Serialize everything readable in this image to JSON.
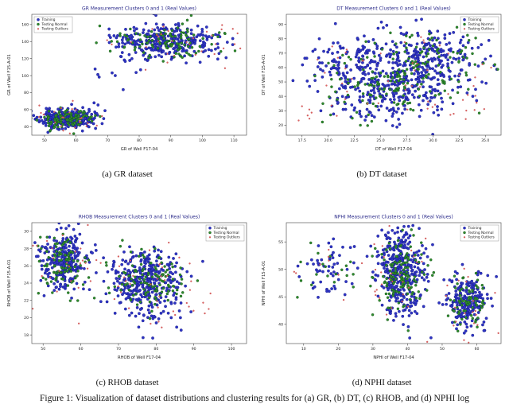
{
  "figure_caption": "Figure 1: Visualization of dataset distributions and clustering results for (a) GR, (b) DT, (c) RHOB, and (d) NPHI log",
  "legend_labels": [
    "Training",
    "Testing Normal",
    "Testing Outliers"
  ],
  "colors": {
    "training": "#2e34c4",
    "training_edge": "#12167c",
    "testing_normal": "#2e8b2e",
    "testing_normal_edge": "#114711",
    "testing_outliers": "#e06363",
    "testing_outliers_edge": "#c04545",
    "axis": "#444444",
    "title": "#2b2b8a",
    "text": "#222222"
  },
  "chart_data": [
    {
      "id": "gr",
      "type": "scatter",
      "title": "GR Measurement Clusters 0 and 1 (Real Values)",
      "xlabel": "GR of Well F17-04",
      "ylabel": "GR of Well F15-A-01",
      "caption": "(a) GR dataset",
      "xlim": [
        46,
        114
      ],
      "ylim": [
        30,
        172
      ],
      "xticks": [
        50,
        60,
        70,
        80,
        90,
        100,
        110
      ],
      "xtick_labels": [
        "50",
        "60",
        "70",
        "80",
        "90",
        "100",
        "110"
      ],
      "yticks": [
        40,
        60,
        80,
        100,
        120,
        140,
        160
      ],
      "ytick_labels": [
        "40",
        "60",
        "80",
        "100",
        "120",
        "140",
        "160"
      ],
      "legend_pos": "top-left",
      "seed": 11,
      "series": [
        {
          "name": "Training",
          "color": "#2e34c4",
          "edge": "#12167c",
          "r": 1.7,
          "clusters": [
            [
              57,
              49,
              4.2,
              5.5,
              300
            ],
            [
              88,
              141,
              8.5,
              10,
              320
            ],
            [
              74,
              100,
              5,
              12,
              8
            ]
          ]
        },
        {
          "name": "Testing Normal",
          "color": "#2e8b2e",
          "edge": "#114711",
          "r": 1.55,
          "clusters": [
            [
              57,
              49,
              4.2,
              5.5,
              100
            ],
            [
              88,
              141,
              8.5,
              10,
              110
            ],
            [
              105,
              149,
              2,
              2,
              3
            ]
          ]
        },
        {
          "name": "Testing Outliers",
          "color": "#e06363",
          "edge": "#c04545",
          "r": 0.95,
          "clusters": [
            [
              57,
              49,
              6.5,
              9,
              26
            ],
            [
              88,
              141,
              12,
              15,
              30
            ],
            [
              107,
              153,
              2.5,
              5,
              5
            ]
          ]
        }
      ]
    },
    {
      "id": "dt",
      "type": "scatter",
      "title": "DT Measurement Clusters 0 and 1 (Real Values)",
      "xlabel": "DT of Well F17-04",
      "ylabel": "DT of Well F15-A-01",
      "caption": "(b) DT dataset",
      "xlim": [
        16,
        36.5
      ],
      "ylim": [
        13,
        97
      ],
      "xticks": [
        17.5,
        20.0,
        22.5,
        25.0,
        27.5,
        30.0,
        32.5,
        35.0
      ],
      "xtick_labels": [
        "17.5",
        "20.0",
        "22.5",
        "25.0",
        "27.5",
        "30.0",
        "32.5",
        "35.0"
      ],
      "yticks": [
        20,
        30,
        40,
        50,
        60,
        70,
        80,
        90
      ],
      "ytick_labels": [
        "20",
        "30",
        "40",
        "50",
        "60",
        "70",
        "80",
        "90"
      ],
      "legend_pos": "top-right",
      "seed": 22,
      "series": [
        {
          "name": "Training",
          "color": "#2e34c4",
          "edge": "#12167c",
          "r": 1.7,
          "clusters": [
            [
              27,
              57,
              3.6,
              13,
              380
            ],
            [
              24,
              40,
              2.6,
              9,
              110
            ],
            [
              30.5,
              70,
              2.6,
              8,
              90
            ],
            [
              21,
              65,
              1.8,
              8,
              40
            ]
          ]
        },
        {
          "name": "Testing Normal",
          "color": "#2e8b2e",
          "edge": "#114711",
          "r": 1.55,
          "clusters": [
            [
              27,
              57,
              3.6,
              13,
              130
            ],
            [
              24,
              40,
              2.6,
              9,
              40
            ],
            [
              30.5,
              70,
              2.6,
              8,
              30
            ]
          ]
        },
        {
          "name": "Testing Outliers",
          "color": "#e06363",
          "edge": "#c04545",
          "r": 0.95,
          "clusters": [
            [
              27,
              55,
              5.5,
              20,
              55
            ],
            [
              19.5,
              25,
              1.5,
              5,
              8
            ],
            [
              34,
              40,
              1,
              6,
              6
            ]
          ]
        }
      ]
    },
    {
      "id": "rhob",
      "type": "scatter",
      "title": "RHOB Measurement Clusters 0 and 1 (Real Values)",
      "xlabel": "RHOB of Well F17-04",
      "ylabel": "RHOB of Well F15-A-01",
      "caption": "(c) RHOB dataset",
      "xlim": [
        47,
        104
      ],
      "ylim": [
        17,
        31
      ],
      "xticks": [
        50,
        60,
        70,
        80,
        90,
        100
      ],
      "xtick_labels": [
        "50",
        "60",
        "70",
        "80",
        "90",
        "100"
      ],
      "yticks": [
        18,
        20,
        22,
        24,
        26,
        28,
        30
      ],
      "ytick_labels": [
        "18",
        "20",
        "22",
        "24",
        "26",
        "28",
        "30"
      ],
      "legend_pos": "top-right",
      "seed": 33,
      "series": [
        {
          "name": "Training",
          "color": "#2e34c4",
          "edge": "#12167c",
          "r": 1.7,
          "clusters": [
            [
              55.5,
              26.5,
              3,
              1.7,
              270
            ],
            [
              77,
              24.3,
              4.8,
              1.7,
              330
            ],
            [
              80,
              20.5,
              4,
              1.2,
              25
            ]
          ]
        },
        {
          "name": "Testing Normal",
          "color": "#2e8b2e",
          "edge": "#114711",
          "r": 1.55,
          "clusters": [
            [
              55.5,
              26.5,
              3,
              1.7,
              95
            ],
            [
              77,
              24.3,
              4.8,
              1.7,
              115
            ]
          ]
        },
        {
          "name": "Testing Outliers",
          "color": "#e06363",
          "edge": "#c04545",
          "r": 0.95,
          "clusters": [
            [
              55.5,
              26.5,
              4.5,
              2.6,
              28
            ],
            [
              77,
              24,
              7,
              2.6,
              35
            ],
            [
              93,
              21.5,
              3,
              1.5,
              6
            ]
          ]
        }
      ]
    },
    {
      "id": "nphi",
      "type": "scatter",
      "title": "NPHI Measurement Clusters 0 and 1 (Real Values)",
      "xlabel": "NPHI of Well F17-04",
      "ylabel": "NPHI of Well F15-A-01",
      "caption": "(d) NPHI dataset",
      "xlim": [
        5,
        67
      ],
      "ylim": [
        36.5,
        58.5
      ],
      "xticks": [
        10,
        20,
        30,
        40,
        50,
        60
      ],
      "xtick_labels": [
        "10",
        "20",
        "30",
        "40",
        "50",
        "60"
      ],
      "yticks": [
        40,
        45,
        50,
        55
      ],
      "ytick_labels": [
        "40",
        "45",
        "50",
        "55"
      ],
      "legend_pos": "top-right",
      "seed": 44,
      "series": [
        {
          "name": "Training",
          "color": "#2e34c4",
          "edge": "#12167c",
          "r": 1.7,
          "clusters": [
            [
              17,
              50,
              4.5,
              3,
              55
            ],
            [
              38,
              49,
              3.4,
              3.6,
              380
            ],
            [
              57,
              44,
              3,
              2.6,
              200
            ]
          ]
        },
        {
          "name": "Testing Normal",
          "color": "#2e8b2e",
          "edge": "#114711",
          "r": 1.55,
          "clusters": [
            [
              17,
              50,
              4.5,
              3,
              20
            ],
            [
              38,
              49,
              3.4,
              3.6,
              130
            ],
            [
              57,
              44,
              3,
              2.6,
              70
            ]
          ]
        },
        {
          "name": "Testing Outliers",
          "color": "#e06363",
          "edge": "#c04545",
          "r": 0.95,
          "clusters": [
            [
              17,
              50,
              6,
              4,
              10
            ],
            [
              38,
              48,
              5,
              5,
              28
            ],
            [
              57,
              43,
              4,
              3.5,
              20
            ]
          ]
        }
      ]
    }
  ]
}
